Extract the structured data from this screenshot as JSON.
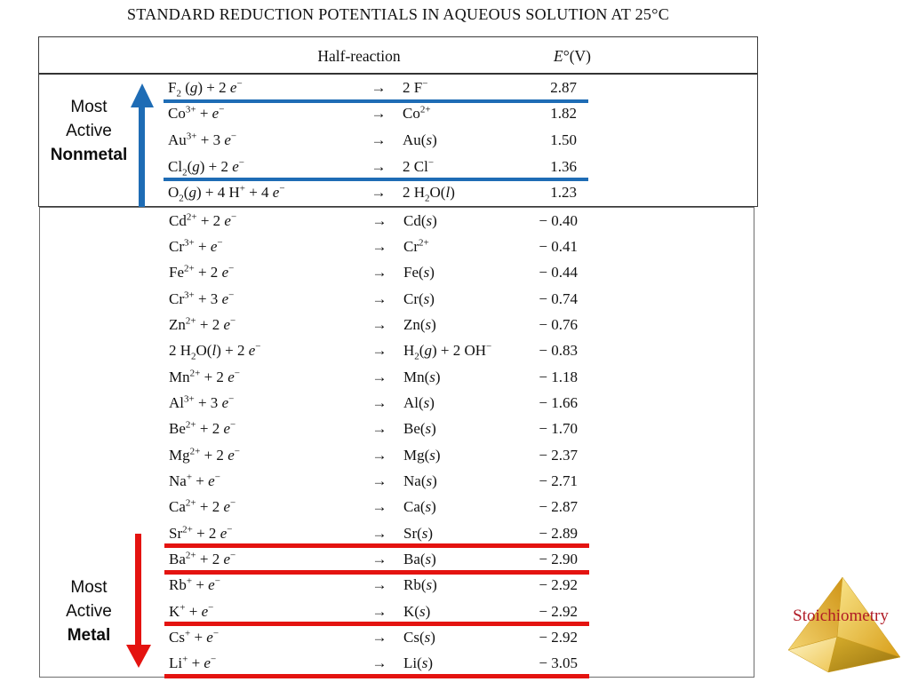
{
  "slide": {
    "title": "STANDARD REDUCTION POTENTIALS IN AQUEOUS SOLUTION AT 25°C"
  },
  "table": {
    "headers": {
      "half_reaction": "Half-reaction",
      "potential": "*E*°(V)"
    },
    "arrow_symbol": "→",
    "top_rows": [
      {
        "reactant": "F_2_ (*g*) + 2 *e*^−^",
        "product": "2 F^−^",
        "potential": "2.87",
        "line_below": "blue"
      },
      {
        "reactant": "Co^3+^ + *e*^−^",
        "product": "Co^2+^",
        "potential": "1.82"
      },
      {
        "reactant": "Au^3+^ + 3 *e*^−^",
        "product": "Au(*s*)",
        "potential": "1.50"
      },
      {
        "reactant": "Cl_2_(*g*) + 2 *e*^−^",
        "product": "2 Cl^−^",
        "potential": "1.36",
        "line_below": "blue"
      },
      {
        "reactant": "O_2_(*g*) + 4 H^+^ + 4 *e*^−^",
        "product": "2 H_2_O(*l*)",
        "potential": "1.23"
      }
    ],
    "bottom_rows": [
      {
        "reactant": "Cd^2+^ + 2 *e*^−^",
        "product": "Cd(*s*)",
        "potential": "− 0.40"
      },
      {
        "reactant": "Cr^3+^ + *e*^−^",
        "product": "Cr^2+^",
        "potential": "− 0.41"
      },
      {
        "reactant": "Fe^2+^ + 2 *e*^−^",
        "product": "Fe(*s*)",
        "potential": "− 0.44"
      },
      {
        "reactant": "Cr^3+^ + 3 *e*^−^",
        "product": "Cr(*s*)",
        "potential": "− 0.74"
      },
      {
        "reactant": "Zn^2+^ + 2 *e*^−^",
        "product": "Zn(*s*)",
        "potential": "− 0.76"
      },
      {
        "reactant": "2 H_2_O(*l*) + 2 *e*^−^",
        "product": "H_2_(*g*) + 2 OH^−^",
        "potential": "− 0.83"
      },
      {
        "reactant": "Mn^2+^ + 2 *e*^−^",
        "product": "Mn(*s*)",
        "potential": "− 1.18"
      },
      {
        "reactant": "Al^3+^ + 3 *e*^−^",
        "product": "Al(*s*)",
        "potential": "− 1.66"
      },
      {
        "reactant": "Be^2+^ + 2 *e*^−^",
        "product": "Be(*s*)",
        "potential": "− 1.70"
      },
      {
        "reactant": "Mg^2+^ + 2 *e*^−^",
        "product": "Mg(*s*)",
        "potential": "− 2.37"
      },
      {
        "reactant": "Na^+^ + *e*^−^",
        "product": "Na(*s*)",
        "potential": "− 2.71"
      },
      {
        "reactant": "Ca^2+^ + 2 *e*^−^",
        "product": "Ca(*s*)",
        "potential": "− 2.87"
      },
      {
        "reactant": "Sr^2+^ + 2 *e*^−^",
        "product": "Sr(*s*)",
        "potential": "− 2.89",
        "line_below": "red"
      },
      {
        "reactant": "Ba^2+^ + 2 *e*^−^",
        "product": "Ba(*s*)",
        "potential": "− 2.90",
        "line_below": "red"
      },
      {
        "reactant": "Rb^+^ + *e*^−^",
        "product": "Rb(*s*)",
        "potential": "− 2.92"
      },
      {
        "reactant": "K^+^ + *e*^−^",
        "product": "K(*s*)",
        "potential": "− 2.92",
        "line_below": "red"
      },
      {
        "reactant": "Cs^+^ + *e*^−^",
        "product": "Cs(*s*)",
        "potential": "− 2.92"
      },
      {
        "reactant": "Li^+^ + *e*^−^",
        "product": "Li(*s*)",
        "potential": "− 3.05",
        "line_below": "red"
      }
    ]
  },
  "annotations": {
    "nonmetal": {
      "lines": [
        "Most",
        "Active",
        "Nonmetal"
      ],
      "arrow_direction": "up"
    },
    "metal": {
      "lines": [
        "Most",
        "Active",
        "Metal"
      ],
      "arrow_direction": "down"
    }
  },
  "logo": {
    "text": "Stoichiometry"
  },
  "colors": {
    "blue_line": "#1e6cb5",
    "red_line": "#e41310",
    "logo_text": "#b01b26"
  }
}
